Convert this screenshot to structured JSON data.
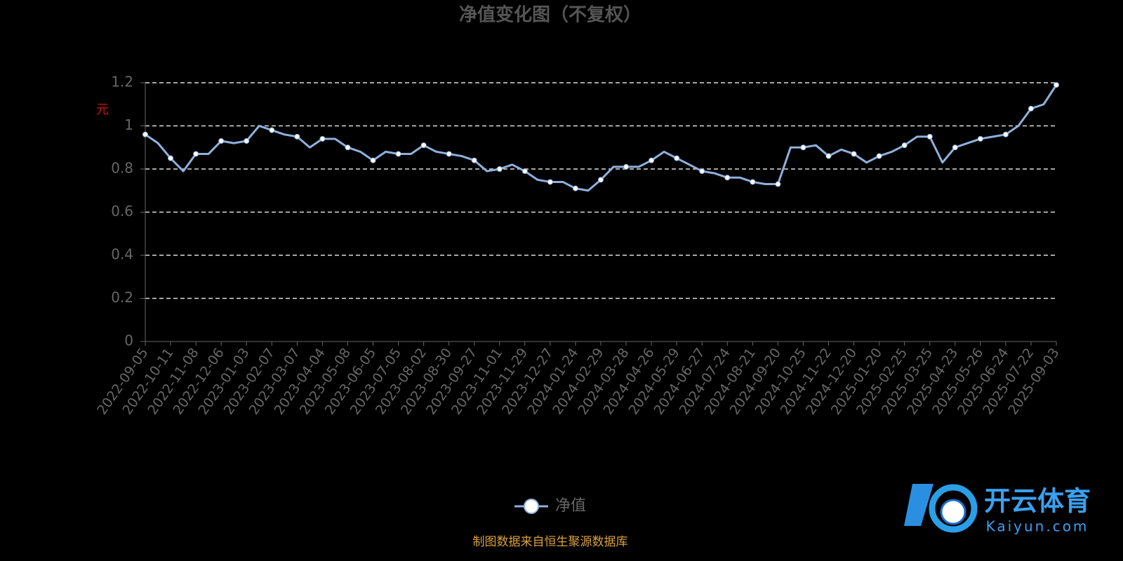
{
  "chart_data": {
    "type": "line",
    "title": "净值变化图（不复权）",
    "y_label": "元",
    "categories": [
      "2022-09-05",
      null,
      "2022-10-11",
      null,
      "2022-11-08",
      null,
      "2022-12-06",
      null,
      "2023-01-03",
      null,
      "2023-02-07",
      null,
      "2023-03-07",
      null,
      "2023-04-04",
      null,
      "2023-05-08",
      null,
      "2023-06-05",
      null,
      "2023-07-05",
      null,
      "2023-08-02",
      null,
      "2023-08-30",
      null,
      "2023-09-27",
      null,
      "2023-11-01",
      null,
      "2023-11-29",
      null,
      "2023-12-27",
      null,
      "2024-01-24",
      null,
      "2024-02-29",
      null,
      "2024-03-28",
      null,
      "2024-04-26",
      null,
      "2024-05-29",
      null,
      "2024-06-27",
      null,
      "2024-07-24",
      null,
      "2024-08-21",
      null,
      "2024-09-20",
      null,
      "2024-10-25",
      null,
      "2024-11-22",
      null,
      "2024-12-20",
      null,
      "2025-01-20",
      null,
      "2025-02-25",
      null,
      "2025-03-25",
      null,
      "2025-04-23",
      null,
      "2025-05-26",
      null,
      "2025-06-24",
      null,
      "2025-07-22",
      null,
      "2025-09-03"
    ],
    "series": [
      {
        "name": "净值",
        "color": "#8fb0dc",
        "values": [
          0.96,
          0.92,
          0.85,
          0.79,
          0.87,
          0.87,
          0.93,
          0.92,
          0.93,
          1.0,
          0.98,
          0.96,
          0.95,
          0.9,
          0.94,
          0.94,
          0.9,
          0.88,
          0.84,
          0.88,
          0.87,
          0.87,
          0.91,
          0.88,
          0.87,
          0.86,
          0.84,
          0.79,
          0.8,
          0.82,
          0.79,
          0.75,
          0.74,
          0.74,
          0.71,
          0.7,
          0.75,
          0.81,
          0.81,
          0.81,
          0.84,
          0.88,
          0.85,
          0.82,
          0.79,
          0.78,
          0.76,
          0.76,
          0.74,
          0.73,
          0.73,
          0.9,
          0.9,
          0.91,
          0.86,
          0.89,
          0.87,
          0.83,
          0.86,
          0.88,
          0.91,
          0.95,
          0.95,
          0.83,
          0.9,
          0.92,
          0.94,
          0.95,
          0.96,
          1.0,
          1.08,
          1.1,
          1.19
        ]
      }
    ],
    "ylim": [
      0,
      1.2
    ],
    "yticks": [
      0,
      0.2,
      0.4,
      0.6,
      0.8,
      1,
      1.2
    ],
    "grid": true,
    "legend": "bottom",
    "source": "制图数据来自恒生聚源数据库"
  },
  "watermark": {
    "brand": "开云体育",
    "url": "Kaiyun.com"
  }
}
